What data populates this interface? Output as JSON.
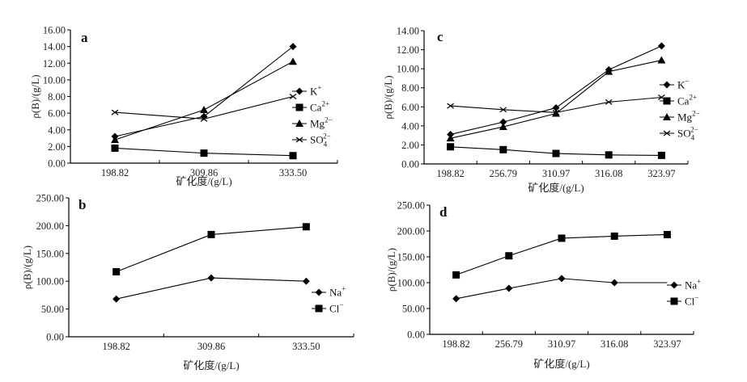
{
  "figure": {
    "ylabel": "ρ(B)/(g/L)",
    "xlabel": "矿化度/(g/L)"
  },
  "chart_data": [
    {
      "id": "a",
      "type": "line",
      "panel_label": "a",
      "categories": [
        "198.82",
        "309.86",
        "333.50"
      ],
      "xlabel": "矿化度/(g/L)",
      "ylabel": "ρ(B)/(g/L)",
      "ylim": [
        0,
        16
      ],
      "yticks": [
        "0.00",
        "2.00",
        "4.00",
        "6.00",
        "8.00",
        "10.00",
        "12.00",
        "14.00",
        "16.00"
      ],
      "ystep": 2,
      "legend_position": "right",
      "series": [
        {
          "name": "K",
          "sup": "+",
          "sub": "",
          "marker": "diamond",
          "values": [
            3.2,
            5.6,
            14.0
          ]
        },
        {
          "name": "Ca",
          "sup": "2+",
          "sub": "",
          "marker": "square",
          "values": [
            1.8,
            1.2,
            0.9
          ]
        },
        {
          "name": "Mg",
          "sup": "2−",
          "sub": "",
          "marker": "triangle",
          "values": [
            2.8,
            6.4,
            12.2
          ]
        },
        {
          "name": "SO",
          "sup": "2−",
          "sub": "4",
          "marker": "x",
          "values": [
            6.1,
            5.3,
            8.0
          ]
        }
      ]
    },
    {
      "id": "b",
      "type": "line",
      "panel_label": "b",
      "categories": [
        "198.82",
        "309.86",
        "333.50"
      ],
      "xlabel": "矿化度/(g/L)",
      "ylabel": "ρ(B)/(g/L)",
      "ylim": [
        0,
        250
      ],
      "yticks": [
        "0.00",
        "50.00",
        "100.00",
        "150.00",
        "200.00",
        "250.00"
      ],
      "ystep": 50,
      "legend_position": "right",
      "series": [
        {
          "name": "Na",
          "sup": "+",
          "sub": "",
          "marker": "diamond",
          "values": [
            68,
            106,
            100
          ]
        },
        {
          "name": "Cl",
          "sup": "−",
          "sub": "",
          "marker": "square",
          "values": [
            117,
            184,
            198
          ]
        }
      ]
    },
    {
      "id": "c",
      "type": "line",
      "panel_label": "c",
      "categories": [
        "198.82",
        "256.79",
        "310.97",
        "316.08",
        "323.97"
      ],
      "xlabel": "矿化度/(g/L)",
      "ylabel": "ρ(B)/(g/L)",
      "ylim": [
        0,
        14
      ],
      "yticks": [
        "0.00",
        "2.00",
        "4.00",
        "6.00",
        "8.00",
        "10.00",
        "12.00",
        "14.00"
      ],
      "ystep": 2,
      "legend_position": "right",
      "series": [
        {
          "name": "K",
          "sup": "−",
          "sub": "",
          "marker": "diamond",
          "values": [
            3.1,
            4.4,
            5.9,
            9.9,
            12.4
          ]
        },
        {
          "name": "Ca",
          "sup": "2+",
          "sub": "",
          "marker": "square",
          "values": [
            1.8,
            1.5,
            1.1,
            0.95,
            0.9
          ]
        },
        {
          "name": "Mg",
          "sup": "2−",
          "sub": "",
          "marker": "triangle",
          "values": [
            2.7,
            3.9,
            5.3,
            9.7,
            10.9
          ]
        },
        {
          "name": "SO",
          "sup": "2−",
          "sub": "4",
          "marker": "x",
          "values": [
            6.1,
            5.7,
            5.4,
            6.5,
            7.0
          ]
        }
      ]
    },
    {
      "id": "d",
      "type": "line",
      "panel_label": "d",
      "categories": [
        "198.82",
        "256.79",
        "310.97",
        "316.08",
        "323.97"
      ],
      "xlabel": "矿化度/(g/L)",
      "ylabel": "ρ(B)/(g/L)",
      "ylim": [
        0,
        250
      ],
      "yticks": [
        "0.00",
        "50.00",
        "100.00",
        "150.00",
        "200.00",
        "250.00"
      ],
      "ystep": 50,
      "legend_position": "right",
      "series": [
        {
          "name": "Na",
          "sup": "+",
          "sub": "",
          "marker": "diamond",
          "values": [
            69,
            89,
            108,
            100,
            100
          ],
          "last_marker_hidden": true
        },
        {
          "name": "Cl",
          "sup": "−",
          "sub": "",
          "marker": "square",
          "values": [
            115,
            152,
            186,
            190,
            193
          ]
        }
      ]
    }
  ]
}
